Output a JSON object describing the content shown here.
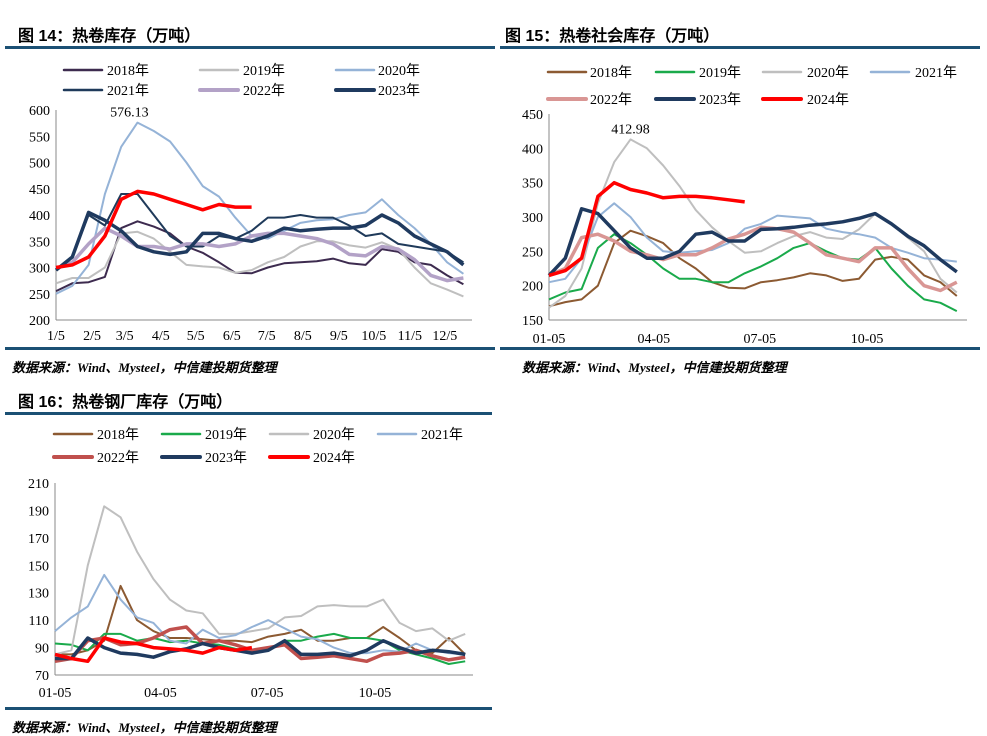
{
  "figures": [
    {
      "title": "图 14：热卷库存（万吨）",
      "source": "数据来源：Wind、Mysteel，中信建投期货整理"
    },
    {
      "title": "图 15：热卷社会库存（万吨）",
      "source": "数据来源：Wind、Mysteel，中信建投期货整理"
    },
    {
      "title": "图 16：热卷钢厂库存（万吨）",
      "source": "数据来源：Wind、Mysteel，中信建投期货整理"
    }
  ],
  "chart_data": [
    {
      "type": "line",
      "title": "图 14：热卷库存（万吨）",
      "x_tick_labels": [
        "1/5",
        "2/5",
        "3/5",
        "4/5",
        "5/5",
        "6/5",
        "7/5",
        "8/5",
        "9/5",
        "10/5",
        "11/5",
        "12/5"
      ],
      "ylim": [
        200,
        600
      ],
      "y_ticks": [
        200,
        250,
        300,
        350,
        400,
        450,
        500,
        550,
        600
      ],
      "grid": false,
      "legend": "top",
      "annotation": {
        "text": "576.13",
        "series": "2020年",
        "x": "03-09",
        "y": 576.13
      },
      "x": [
        "01-05",
        "01-19",
        "02-02",
        "02-16",
        "03-02",
        "03-16",
        "03-30",
        "04-13",
        "04-27",
        "05-11",
        "05-25",
        "06-08",
        "06-22",
        "07-06",
        "07-20",
        "08-03",
        "08-17",
        "08-31",
        "09-14",
        "09-28",
        "10-12",
        "10-26",
        "11-09",
        "11-23",
        "12-07",
        "12-21"
      ],
      "series": [
        {
          "name": "2018年",
          "color": "#3d2b4f",
          "values": [
            255,
            270,
            272,
            282,
            375,
            388,
            378,
            365,
            340,
            328,
            310,
            290,
            289,
            300,
            308,
            310,
            312,
            317,
            308,
            305,
            335,
            330,
            310,
            305,
            285,
            268
          ]
        },
        {
          "name": "2019年",
          "color": "#bfbfbf",
          "values": [
            270,
            280,
            280,
            300,
            365,
            368,
            355,
            330,
            305,
            302,
            300,
            290,
            295,
            310,
            320,
            340,
            350,
            350,
            342,
            338,
            348,
            335,
            300,
            270,
            258,
            245
          ]
        },
        {
          "name": "2020年",
          "color": "#95b3d7",
          "values": [
            250,
            265,
            305,
            440,
            530,
            576,
            560,
            540,
            500,
            455,
            435,
            395,
            360,
            355,
            370,
            385,
            390,
            392,
            400,
            405,
            430,
            400,
            375,
            345,
            310,
            288
          ]
        },
        {
          "name": "2021年",
          "color": "#1f3a5a",
          "values": [
            295,
            320,
            400,
            380,
            440,
            440,
            400,
            360,
            340,
            340,
            360,
            355,
            370,
            395,
            395,
            400,
            395,
            395,
            380,
            360,
            365,
            345,
            340,
            335,
            330,
            310
          ]
        },
        {
          "name": "2022年",
          "color": "#b3a2c7",
          "values": [
            298,
            310,
            345,
            375,
            360,
            340,
            340,
            335,
            345,
            345,
            340,
            345,
            360,
            365,
            365,
            360,
            355,
            345,
            325,
            322,
            340,
            335,
            315,
            285,
            275,
            280
          ]
        },
        {
          "name": "2023年",
          "color": "#1f3a5f",
          "values": [
            295,
            320,
            405,
            390,
            370,
            340,
            330,
            325,
            330,
            365,
            365,
            355,
            350,
            360,
            375,
            370,
            373,
            375,
            375,
            380,
            400,
            385,
            360,
            345,
            330,
            305
          ]
        },
        {
          "color": "#ff0000",
          "values": [
            300,
            305,
            320,
            360,
            430,
            445,
            440,
            430,
            420,
            410,
            420,
            415,
            415,
            null,
            null,
            null,
            null,
            null,
            null,
            null,
            null,
            null,
            null,
            null,
            null,
            null
          ]
        }
      ]
    },
    {
      "type": "line",
      "title": "图 15：热卷社会库存（万吨）",
      "x_tick_labels": [
        "01-05",
        "04-05",
        "07-05",
        "10-05"
      ],
      "ylim": [
        150,
        450
      ],
      "y_ticks": [
        150,
        200,
        250,
        300,
        350,
        400,
        450
      ],
      "grid": false,
      "legend": "top",
      "annotation": {
        "text": "412.98",
        "series": "2020年",
        "x": "03-16",
        "y": 412.98
      },
      "x": [
        "01-05",
        "01-19",
        "02-02",
        "02-16",
        "03-02",
        "03-16",
        "03-30",
        "04-13",
        "04-27",
        "05-11",
        "05-25",
        "06-08",
        "06-22",
        "07-06",
        "07-20",
        "08-03",
        "08-17",
        "08-31",
        "09-14",
        "09-28",
        "10-12",
        "10-26",
        "11-09",
        "11-23",
        "12-07",
        "12-21"
      ],
      "series": [
        {
          "name": "2018年",
          "color": "#8c5a32",
          "values": [
            170,
            176,
            180,
            200,
            262,
            280,
            272,
            262,
            240,
            225,
            205,
            197,
            196,
            205,
            208,
            212,
            218,
            215,
            207,
            210,
            238,
            242,
            238,
            215,
            205,
            185
          ]
        },
        {
          "name": "2019年",
          "color": "#1aaa4b",
          "values": [
            180,
            190,
            195,
            255,
            275,
            262,
            245,
            225,
            210,
            210,
            205,
            205,
            218,
            228,
            240,
            255,
            262,
            250,
            240,
            238,
            255,
            225,
            200,
            180,
            175,
            163
          ]
        },
        {
          "name": "2020年",
          "color": "#bfbfbf",
          "values": [
            168,
            185,
            225,
            320,
            380,
            412.98,
            400,
            375,
            345,
            310,
            285,
            265,
            248,
            250,
            262,
            272,
            278,
            270,
            268,
            282,
            305,
            290,
            270,
            250,
            210,
            190
          ]
        },
        {
          "name": "2021年",
          "color": "#95b3d7",
          "values": [
            205,
            210,
            240,
            300,
            320,
            300,
            270,
            250,
            248,
            250,
            252,
            262,
            283,
            290,
            302,
            300,
            298,
            283,
            278,
            275,
            270,
            255,
            248,
            240,
            238,
            235
          ]
        },
        {
          "name": "2022年",
          "color": "#d99694",
          "values": [
            215,
            225,
            270,
            275,
            265,
            250,
            245,
            238,
            245,
            245,
            255,
            268,
            275,
            285,
            283,
            278,
            262,
            245,
            240,
            235,
            255,
            255,
            225,
            200,
            193,
            205
          ]
        },
        {
          "name": "2023年",
          "color": "#1f3a5f",
          "values": [
            215,
            240,
            312,
            305,
            280,
            255,
            240,
            240,
            250,
            275,
            278,
            265,
            265,
            282,
            283,
            285,
            288,
            290,
            293,
            298,
            305,
            290,
            272,
            258,
            238,
            220
          ]
        },
        {
          "name": "2024年",
          "color": "#ff0000",
          "values": [
            215,
            222,
            240,
            330,
            350,
            340,
            335,
            328,
            330,
            330,
            328,
            325,
            322,
            null,
            null,
            null,
            null,
            null,
            null,
            null,
            null,
            null,
            null,
            null,
            null,
            null
          ]
        }
      ]
    },
    {
      "type": "line",
      "title": "图 16：热卷钢厂库存（万吨）",
      "x_tick_labels": [
        "01-05",
        "04-05",
        "07-05",
        "10-05"
      ],
      "ylim": [
        70,
        210
      ],
      "y_ticks": [
        70,
        90,
        110,
        130,
        150,
        170,
        190,
        210
      ],
      "grid": false,
      "legend": "top",
      "x": [
        "01-05",
        "01-19",
        "02-02",
        "02-16",
        "03-02",
        "03-16",
        "03-30",
        "04-13",
        "04-27",
        "05-11",
        "05-25",
        "06-08",
        "06-22",
        "07-06",
        "07-20",
        "08-03",
        "08-17",
        "08-31",
        "09-14",
        "09-28",
        "10-12",
        "10-26",
        "11-09",
        "11-23",
        "12-07",
        "12-21"
      ],
      "series": [
        {
          "name": "2018年",
          "color": "#8c5a32",
          "values": [
            85,
            85,
            88,
            95,
            135,
            110,
            102,
            97,
            97,
            96,
            95,
            95,
            94,
            98,
            100,
            103,
            95,
            95,
            97,
            97,
            105,
            97,
            88,
            86,
            97,
            85
          ]
        },
        {
          "name": "2019年",
          "color": "#1aaa4b",
          "values": [
            93,
            92,
            88,
            100,
            100,
            95,
            97,
            94,
            95,
            93,
            92,
            89,
            87,
            88,
            95,
            95,
            98,
            100,
            97,
            97,
            95,
            88,
            85,
            82,
            78,
            80
          ]
        },
        {
          "name": "2020年",
          "color": "#bfbfbf",
          "values": [
            85,
            88,
            150,
            193,
            185,
            160,
            140,
            125,
            117,
            115,
            100,
            100,
            102,
            104,
            112,
            113,
            120,
            121,
            120,
            120,
            125,
            108,
            102,
            104,
            95,
            100
          ]
        },
        {
          "name": "2021年",
          "color": "#95b3d7",
          "values": [
            102,
            112,
            120,
            143,
            125,
            112,
            108,
            95,
            93,
            103,
            97,
            99,
            105,
            110,
            104,
            98,
            96,
            90,
            86,
            86,
            88,
            87,
            93,
            88,
            86,
            85
          ]
        },
        {
          "name": "2022年",
          "color": "#c0504d",
          "values": [
            80,
            82,
            95,
            97,
            92,
            93,
            97,
            103,
            105,
            93,
            95,
            92,
            88,
            90,
            92,
            82,
            83,
            84,
            82,
            80,
            85,
            86,
            88,
            84,
            81,
            83
          ]
        },
        {
          "name": "2023年",
          "color": "#1f3a5f",
          "values": [
            82,
            82,
            97,
            90,
            86,
            85,
            83,
            87,
            89,
            93,
            90,
            88,
            86,
            88,
            95,
            85,
            85,
            86,
            84,
            88,
            95,
            90,
            86,
            88,
            87,
            85
          ]
        },
        {
          "name": "2024年",
          "color": "#ff0000",
          "values": [
            85,
            82,
            80,
            97,
            94,
            93,
            90,
            89,
            88,
            86,
            90,
            88,
            90,
            null,
            null,
            null,
            null,
            null,
            null,
            null,
            null,
            null,
            null,
            null,
            null,
            null
          ]
        }
      ]
    }
  ]
}
